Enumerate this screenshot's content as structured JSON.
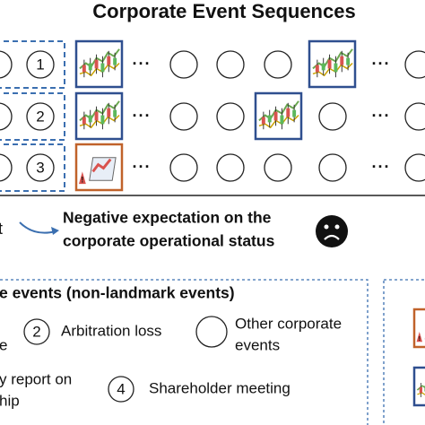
{
  "title": "Corporate Event Sequences",
  "sequences": [
    {
      "number": "1"
    },
    {
      "number": "2"
    },
    {
      "number": "3"
    }
  ],
  "ellipsis": "···",
  "outcome": {
    "fragment": "t",
    "line1": "Negative expectation on the",
    "line2": "corporate  operational status"
  },
  "legend": {
    "title": "e events  (non-landmark events)",
    "items": [
      {
        "number": "2",
        "label": "Arbitration loss"
      },
      {
        "label": [
          "Other corporate",
          "events"
        ]
      },
      {
        "number": "4",
        "label": "Shareholder meeting"
      }
    ],
    "fragments": [
      "e",
      "y report on",
      "hip"
    ]
  }
}
